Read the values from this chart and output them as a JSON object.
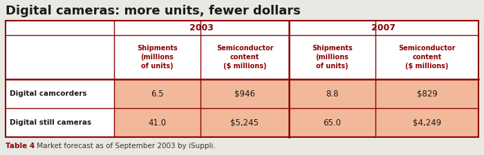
{
  "title": "Digital cameras: more units, fewer dollars",
  "year_headers": [
    "2003",
    "2007"
  ],
  "col_headers": [
    "Shipments\n(millions\nof units)",
    "Semiconductor\ncontent\n($ millions)",
    "Shipments\n(millions\nof units)",
    "Semiconductor\ncontent\n($ millions)"
  ],
  "row_labels": [
    "Digital camcorders",
    "Digital still cameras"
  ],
  "data": [
    [
      "6.5",
      "$946",
      "8.8",
      "$829"
    ],
    [
      "41.0",
      "$5,245",
      "65.0",
      "$4,249"
    ]
  ],
  "title_color": "#1a1a1a",
  "header_year_color": "#8B0000",
  "header_col_color": "#8B0000",
  "row_label_color": "#1a1a1a",
  "data_color": "#1a1a1a",
  "data_bg_color": "#F2B89A",
  "table_border_color": "#8B0000",
  "caption_label_color": "#8B0000",
  "outer_bg_color": "#EAE8E3",
  "table_bg_color": "#FFFFFF",
  "caption_text": " Market forecast as of September 2003 by iSuppli.",
  "caption_bold": "Table 4"
}
